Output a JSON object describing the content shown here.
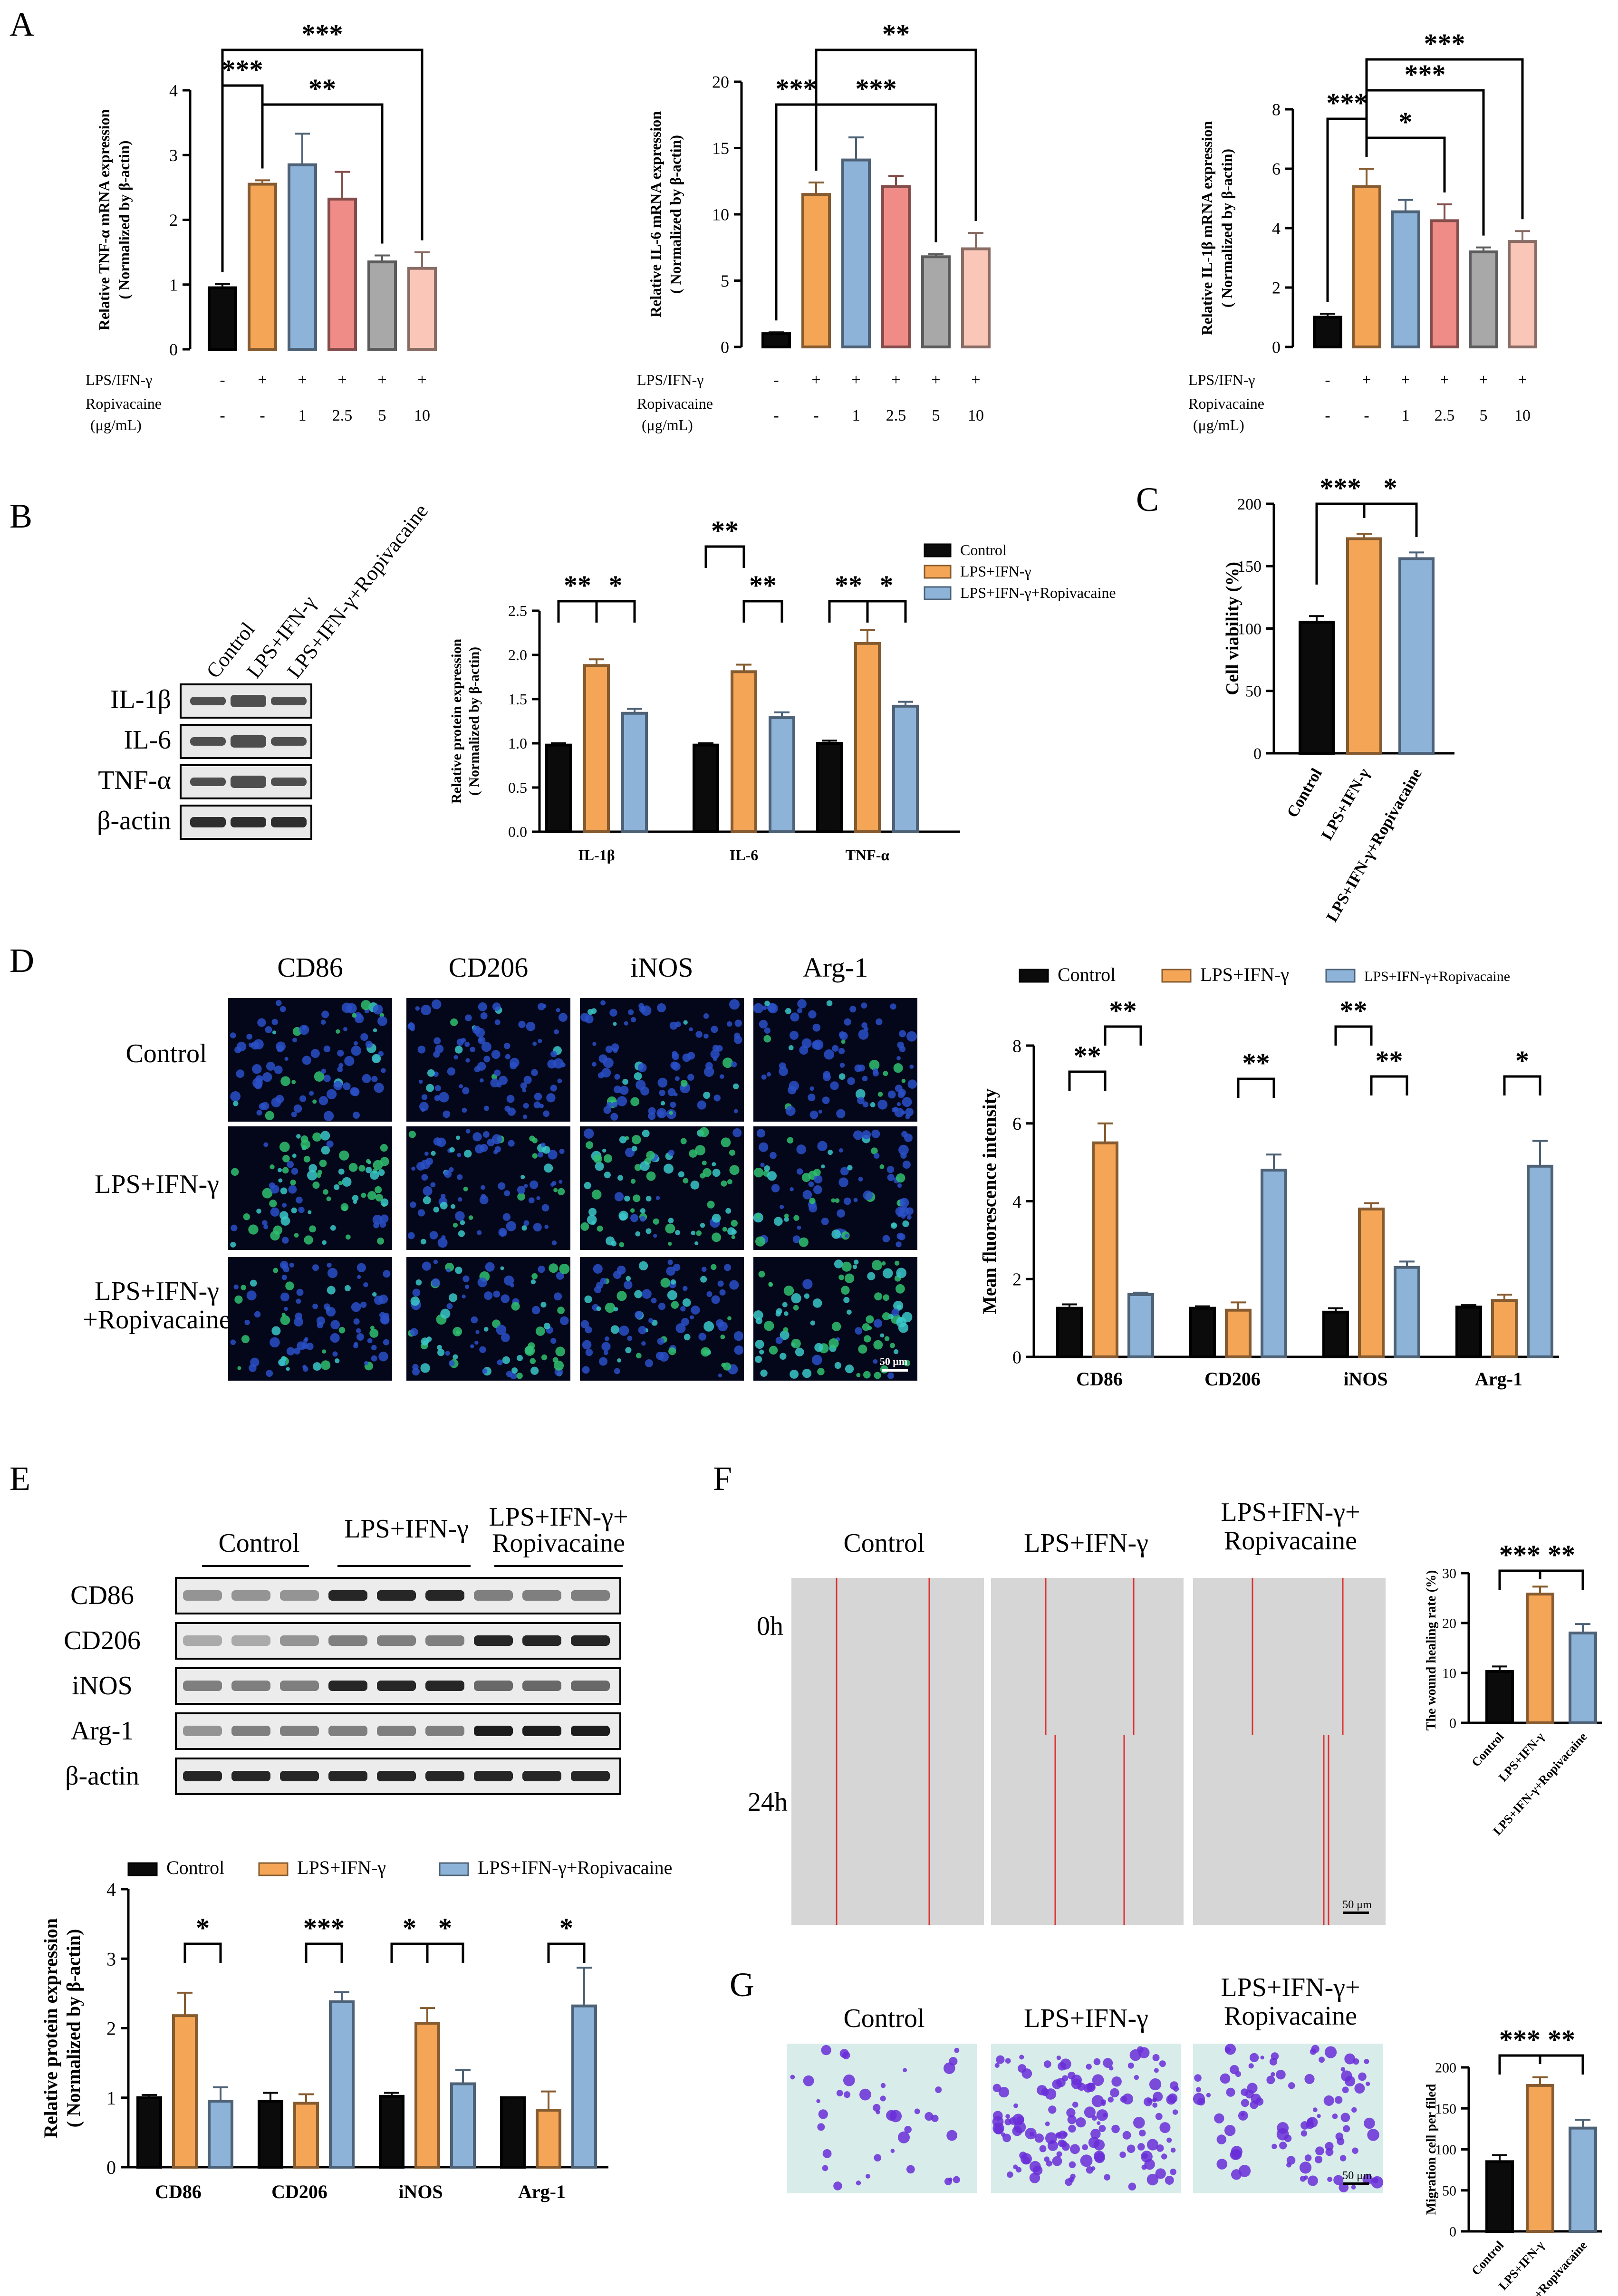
{
  "colors": {
    "control": "#0b0b0b",
    "lps": "#f4a556",
    "rop": "#8db3d9",
    "red": "#f08c88",
    "grey": "#a8a8a8",
    "pink": "#f9c6b8",
    "blueHi": "#2a50c8",
    "green": "#30c070"
  },
  "panels": {
    "A": "A",
    "B": "B",
    "C": "C",
    "D": "D",
    "E": "E",
    "F": "F",
    "G": "G"
  },
  "panel_a": {
    "row_labels": [
      "LPS/IFN-γ",
      "Ropivacaine",
      "(μg/mL)"
    ],
    "lps_row": [
      "-",
      "+",
      "+",
      "+",
      "+",
      "+"
    ],
    "rop_row": [
      "-",
      "-",
      "1",
      "2.5",
      "5",
      "10"
    ],
    "charts": [
      {
        "ylabel": "Relative TNF-α mRNA expression",
        "ylabel2": "( Normalized by β-actin)",
        "ylim": [
          0,
          4
        ],
        "ticks": [
          "0",
          "1",
          "2",
          "3",
          "4"
        ],
        "values": [
          0.95,
          2.55,
          2.85,
          2.32,
          1.35,
          1.25
        ],
        "errors": [
          0.06,
          0.06,
          0.48,
          0.42,
          0.1,
          0.25
        ],
        "sig": [
          "***",
          "**",
          "***"
        ]
      },
      {
        "ylabel": "Relative IL-6 mRNA expression",
        "ylabel2": "( Normalized by β-actin)",
        "ylim": [
          0,
          20
        ],
        "ticks": [
          "0",
          "5",
          "10",
          "15",
          "20"
        ],
        "values": [
          1.0,
          11.5,
          14.1,
          12.1,
          6.8,
          7.4
        ],
        "errors": [
          0.1,
          0.9,
          1.7,
          0.8,
          0.2,
          1.2
        ],
        "sig": [
          "***",
          "***",
          "**"
        ]
      },
      {
        "ylabel": "Relative IL-1β mRNA expression",
        "ylabel2": "( Normalized by β-actin)",
        "ylim": [
          0,
          8
        ],
        "ticks": [
          "0",
          "2",
          "4",
          "6",
          "8"
        ],
        "values": [
          1.0,
          5.4,
          4.55,
          4.25,
          3.2,
          3.55
        ],
        "errors": [
          0.12,
          0.6,
          0.4,
          0.55,
          0.15,
          0.35
        ],
        "sig": [
          "***",
          "*",
          "***",
          "***"
        ]
      }
    ]
  },
  "panel_b": {
    "lanes": [
      "Control",
      "LPS+IFN-γ",
      "LPS+IFN-γ+Ropivacaine"
    ],
    "bands": [
      "IL-1β",
      "IL-6",
      "TNF-α",
      "β-actin"
    ],
    "legend": [
      "Control",
      "LPS+IFN-γ",
      "LPS+IFN-γ+Ropivacaine"
    ],
    "ylabel": "Relative protein expression",
    "ylabel2": "( Normalized by β-actin)",
    "ticks": [
      "0.0",
      "0.5",
      "1.0",
      "1.5",
      "2.0",
      "2.5"
    ],
    "categories": [
      "IL-1β",
      "IL-6",
      "TNF-α"
    ],
    "series": [
      {
        "values": [
          0.98,
          0.98,
          1.0
        ],
        "errors": [
          0.02,
          0.02,
          0.03
        ]
      },
      {
        "values": [
          1.88,
          1.81,
          2.13
        ],
        "errors": [
          0.07,
          0.08,
          0.15
        ]
      },
      {
        "values": [
          1.34,
          1.29,
          1.42
        ],
        "errors": [
          0.05,
          0.06,
          0.05
        ]
      }
    ],
    "sig": [
      "**",
      "*",
      "**",
      "**",
      "**",
      "*"
    ]
  },
  "panel_c": {
    "ylabel": "Cell viability (%)",
    "ticks": [
      "0",
      "50",
      "100",
      "150",
      "200"
    ],
    "categories": [
      "Control",
      "LPS+IFN-γ",
      "LPS+IFN-γ+Ropivacaine"
    ],
    "values": [
      105,
      172,
      156
    ],
    "errors": [
      5,
      4,
      5
    ],
    "sig": [
      "***",
      "*"
    ]
  },
  "panel_d": {
    "columns": [
      "CD86",
      "CD206",
      "iNOS",
      "Arg-1"
    ],
    "rows": [
      "Control",
      "LPS+IFN-γ",
      "LPS+IFN-γ",
      "+Ropivacaine"
    ],
    "scale": "50 μm",
    "legend": [
      "Control",
      "LPS+IFN-γ",
      "LPS+IFN-γ+Ropivacaine"
    ],
    "ylabel": "Mean fluorescence intensity",
    "ticks": [
      "0",
      "2",
      "4",
      "6",
      "8"
    ],
    "categories": [
      "CD86",
      "CD206",
      "iNOS",
      "Arg-1"
    ],
    "series": [
      {
        "values": [
          1.25,
          1.25,
          1.15,
          1.28
        ],
        "errors": [
          0.1,
          0.05,
          0.1,
          0.05
        ]
      },
      {
        "values": [
          5.5,
          1.2,
          3.8,
          1.45
        ],
        "errors": [
          0.5,
          0.2,
          0.15,
          0.15
        ]
      },
      {
        "values": [
          1.6,
          4.8,
          2.3,
          4.9
        ],
        "errors": [
          0.05,
          0.4,
          0.15,
          0.65
        ]
      }
    ],
    "sig": [
      "**",
      "**",
      "**",
      "**",
      "**",
      "*"
    ]
  },
  "panel_e": {
    "groups": [
      "Control",
      "LPS+IFN-γ",
      "LPS+IFN-γ+",
      "Ropivacaine"
    ],
    "bands": [
      "CD86",
      "CD206",
      "iNOS",
      "Arg-1",
      "β-actin"
    ],
    "legend": [
      "Control",
      "LPS+IFN-γ",
      "LPS+IFN-γ+Ropivacaine"
    ],
    "ylabel": "Relative protein expression",
    "ylabel2": "( Normalized by β-actin)",
    "ticks": [
      "0",
      "1",
      "2",
      "3",
      "4"
    ],
    "categories": [
      "CD86",
      "CD206",
      "iNOS",
      "Arg-1"
    ],
    "series": [
      {
        "values": [
          1.0,
          0.95,
          1.02,
          1.0
        ],
        "errors": [
          0.04,
          0.12,
          0.05,
          0.0
        ]
      },
      {
        "values": [
          2.18,
          0.92,
          2.07,
          0.82
        ],
        "errors": [
          0.33,
          0.13,
          0.22,
          0.27
        ]
      },
      {
        "values": [
          0.95,
          2.38,
          1.2,
          2.32
        ],
        "errors": [
          0.2,
          0.14,
          0.2,
          0.55
        ]
      }
    ],
    "sig": [
      "*",
      "***",
      "*",
      "*",
      "*"
    ]
  },
  "panel_f": {
    "headers": [
      "Control",
      "LPS+IFN-γ",
      "LPS+IFN-γ+",
      "Ropivacaine"
    ],
    "rows": [
      "0h",
      "24h"
    ],
    "scale": "50 μm",
    "ylabel": "The wound healing rate (%)",
    "ticks": [
      "0",
      "10",
      "20",
      "30"
    ],
    "categories": [
      "Control",
      "LPS+IFN-γ",
      "LPS+IFN-γ+Ropivacaine"
    ],
    "values": [
      10.3,
      25.8,
      18.0
    ],
    "errors": [
      1.0,
      1.5,
      1.8
    ],
    "sig": [
      "***",
      "**"
    ]
  },
  "panel_g": {
    "headers": [
      "Control",
      "LPS+IFN-γ",
      "LPS+IFN-γ+",
      "Ropivacaine"
    ],
    "scale": "50 μm",
    "ylabel": "Migration cell per filed",
    "ticks": [
      "0",
      "50",
      "100",
      "150",
      "200"
    ],
    "categories": [
      "Control",
      "LPS+IFN-γ",
      "LPS+IFN-γ+Ropivacaine"
    ],
    "values": [
      85,
      178,
      126
    ],
    "errors": [
      8,
      10,
      10
    ],
    "sig": [
      "***",
      "**"
    ]
  }
}
